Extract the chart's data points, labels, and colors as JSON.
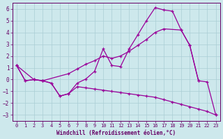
{
  "xlabel": "Windchill (Refroidissement éolien,°C)",
  "line1_x": [
    0,
    1,
    2,
    3,
    4,
    5,
    6,
    7,
    8,
    9,
    10,
    11,
    12,
    13,
    14,
    15,
    16,
    17,
    18,
    19,
    20,
    21,
    22,
    23
  ],
  "line1_y": [
    1.2,
    -0.1,
    0.0,
    -0.1,
    -0.3,
    -1.4,
    -1.2,
    -0.3,
    0.05,
    0.7,
    2.6,
    1.2,
    1.1,
    2.6,
    3.8,
    5.0,
    6.1,
    5.9,
    5.8,
    4.2,
    2.9,
    -0.1,
    -0.2,
    -3.0
  ],
  "line2_x": [
    0,
    2,
    3,
    6,
    7,
    8,
    9,
    10,
    11,
    12,
    13,
    14,
    15,
    16,
    17,
    19,
    20,
    21
  ],
  "line2_y": [
    1.2,
    0.0,
    -0.1,
    0.5,
    0.9,
    1.3,
    1.6,
    2.0,
    1.8,
    2.0,
    2.4,
    2.9,
    3.4,
    4.0,
    4.3,
    4.2,
    2.9,
    -0.1
  ],
  "line3_x": [
    0,
    1,
    2,
    3,
    4,
    5,
    6,
    7,
    8,
    9,
    10,
    11,
    12,
    13,
    14,
    15,
    16,
    17,
    18,
    19,
    20,
    21,
    22,
    23
  ],
  "line3_y": [
    1.2,
    -0.1,
    0.0,
    -0.1,
    -0.3,
    -1.4,
    -1.2,
    -0.6,
    -0.7,
    -0.8,
    -0.9,
    -1.0,
    -1.1,
    -1.2,
    -1.3,
    -1.4,
    -1.5,
    -1.7,
    -1.9,
    -2.1,
    -2.3,
    -2.5,
    -2.7,
    -3.0
  ],
  "line_color": "#990099",
  "bg_color": "#cde8ec",
  "grid_color": "#aacdd4",
  "ylim": [
    -3.5,
    6.5
  ],
  "xlim": [
    -0.5,
    23.5
  ],
  "yticks": [
    -3,
    -2,
    -1,
    0,
    1,
    2,
    3,
    4,
    5,
    6
  ],
  "xticks": [
    0,
    1,
    2,
    3,
    4,
    5,
    6,
    7,
    8,
    9,
    10,
    11,
    12,
    13,
    14,
    15,
    16,
    17,
    18,
    19,
    20,
    21,
    22,
    23
  ]
}
